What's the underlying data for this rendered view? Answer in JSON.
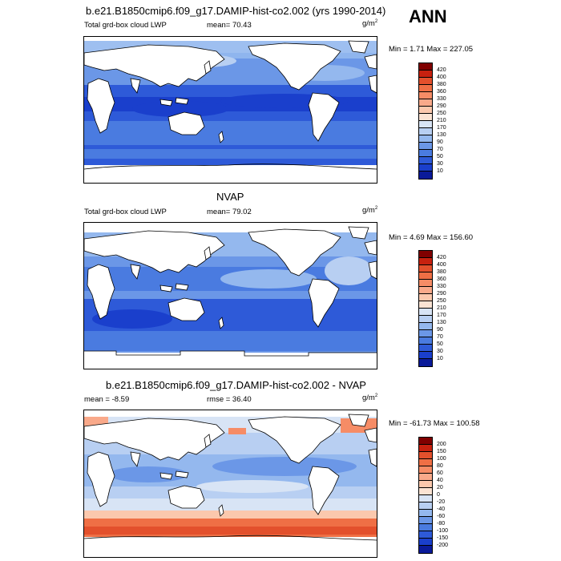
{
  "season": "ANN",
  "panels": [
    {
      "title": "b.e21.B1850cmip6.f09_g17.DAMIP-hist-co2.002 (yrs 1990-2014)",
      "left_label": "Total grd-box cloud LWP",
      "stat_label": "mean=  70.43",
      "units": "g/m",
      "units_sup": "2",
      "minmax": "Min =   1.71 Max = 227.05",
      "colorbar_labels": [
        "420",
        "400",
        "380",
        "360",
        "330",
        "290",
        "250",
        "210",
        "170",
        "130",
        "90",
        "70",
        "50",
        "30",
        "10"
      ],
      "colorbar_colors": [
        "#800000",
        "#c7210f",
        "#e3502c",
        "#ef6f45",
        "#f68c66",
        "#f9a98a",
        "#fbc8ad",
        "#fbe3d3",
        "#d8e4f5",
        "#b8cff2",
        "#94b8ee",
        "#6b97e7",
        "#4a7be0",
        "#2e5ad8",
        "#1a3fcc",
        "#0a1a99"
      ]
    },
    {
      "title": "NVAP",
      "left_label": "Total grd-box cloud LWP",
      "stat_label": "mean=  79.02",
      "units": "g/m",
      "units_sup": "2",
      "minmax": "Min =   4.69 Max = 156.60",
      "colorbar_labels": [
        "420",
        "400",
        "380",
        "360",
        "330",
        "290",
        "250",
        "210",
        "170",
        "130",
        "90",
        "70",
        "50",
        "30",
        "10"
      ],
      "colorbar_colors": [
        "#800000",
        "#c7210f",
        "#e3502c",
        "#ef6f45",
        "#f68c66",
        "#f9a98a",
        "#fbc8ad",
        "#fbe3d3",
        "#d8e4f5",
        "#b8cff2",
        "#94b8ee",
        "#6b97e7",
        "#4a7be0",
        "#2e5ad8",
        "#1a3fcc",
        "#0a1a99"
      ]
    },
    {
      "title": "b.e21.B1850cmip6.f09_g17.DAMIP-hist-co2.002 - NVAP",
      "left_label": "mean =  -8.59",
      "stat_label": "rmse =  36.40",
      "units": "g/m",
      "units_sup": "2",
      "minmax": "Min = -61.73 Max = 100.58",
      "colorbar_labels": [
        "200",
        "150",
        "100",
        "80",
        "60",
        "40",
        "20",
        "0",
        "-20",
        "-40",
        "-60",
        "-80",
        "-100",
        "-150",
        "-200"
      ],
      "colorbar_colors": [
        "#800000",
        "#c7210f",
        "#e3502c",
        "#ef6f45",
        "#f68c66",
        "#f9a98a",
        "#fbc8ad",
        "#fbe3d3",
        "#d8e4f5",
        "#b8cff2",
        "#94b8ee",
        "#6b97e7",
        "#4a7be0",
        "#2e5ad8",
        "#1a3fcc",
        "#0a1a99"
      ]
    }
  ]
}
